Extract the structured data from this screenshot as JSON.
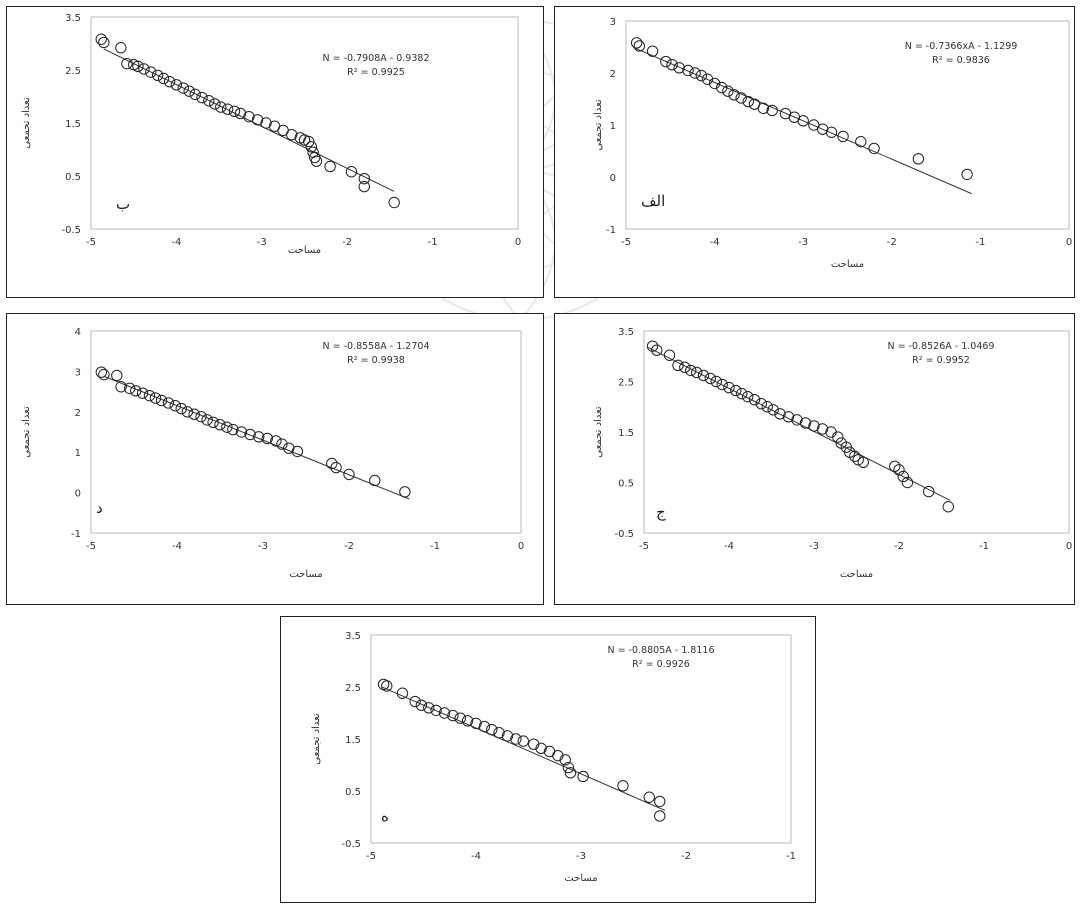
{
  "chart_data": [
    {
      "id": "b",
      "type": "scatter",
      "panel_label": "ب",
      "equation": "N = -0.7908A - 0.9382",
      "r2": "R² = 0.9925",
      "xlabel": "مساحت",
      "ylabel": "تعداد تجمعی",
      "xlim": [
        -5,
        0
      ],
      "ylim": [
        -0.5,
        3.5
      ],
      "xticks": [
        -5,
        -4,
        -3,
        -2,
        -1,
        0
      ],
      "yticks": [
        -0.5,
        0.5,
        1.5,
        2.5,
        3.5
      ],
      "trendline": {
        "slope": -0.7908,
        "intercept": -0.9382,
        "x": [
          -4.85,
          -1.45
        ]
      },
      "points": [
        [
          -4.88,
          3.08
        ],
        [
          -4.85,
          3.02
        ],
        [
          -4.65,
          2.92
        ],
        [
          -4.58,
          2.62
        ],
        [
          -4.5,
          2.6
        ],
        [
          -4.45,
          2.57
        ],
        [
          -4.38,
          2.52
        ],
        [
          -4.3,
          2.46
        ],
        [
          -4.22,
          2.4
        ],
        [
          -4.15,
          2.34
        ],
        [
          -4.08,
          2.28
        ],
        [
          -4.0,
          2.22
        ],
        [
          -3.92,
          2.16
        ],
        [
          -3.85,
          2.1
        ],
        [
          -3.78,
          2.04
        ],
        [
          -3.7,
          1.98
        ],
        [
          -3.62,
          1.92
        ],
        [
          -3.55,
          1.86
        ],
        [
          -3.48,
          1.8
        ],
        [
          -3.4,
          1.76
        ],
        [
          -3.32,
          1.72
        ],
        [
          -3.25,
          1.68
        ],
        [
          -3.15,
          1.62
        ],
        [
          -3.05,
          1.56
        ],
        [
          -2.95,
          1.5
        ],
        [
          -2.85,
          1.44
        ],
        [
          -2.75,
          1.36
        ],
        [
          -2.65,
          1.28
        ],
        [
          -2.55,
          1.22
        ],
        [
          -2.5,
          1.18
        ],
        [
          -2.45,
          1.15
        ],
        [
          -2.42,
          1.05
        ],
        [
          -2.4,
          0.95
        ],
        [
          -2.38,
          0.85
        ],
        [
          -2.36,
          0.78
        ],
        [
          -2.2,
          0.68
        ],
        [
          -1.95,
          0.58
        ],
        [
          -1.8,
          0.45
        ],
        [
          -1.8,
          0.3
        ],
        [
          -1.45,
          0.0
        ]
      ]
    },
    {
      "id": "alef",
      "type": "scatter",
      "panel_label": "الف",
      "equation": "N = -0.7366xA - 1.1299",
      "r2": "R² = 0.9836",
      "xlabel": "مساحت",
      "ylabel": "تعداد تجمعی",
      "xlim": [
        -5,
        0
      ],
      "ylim": [
        -1,
        3
      ],
      "xticks": [
        -5,
        -4,
        -3,
        -2,
        -1,
        0
      ],
      "yticks": [
        -1,
        0,
        1,
        2,
        3
      ],
      "trendline": {
        "slope": -0.7366,
        "intercept": -1.1299,
        "x": [
          -4.9,
          -1.1
        ]
      },
      "points": [
        [
          -4.88,
          2.58
        ],
        [
          -4.85,
          2.52
        ],
        [
          -4.7,
          2.42
        ],
        [
          -4.55,
          2.22
        ],
        [
          -4.48,
          2.16
        ],
        [
          -4.4,
          2.1
        ],
        [
          -4.3,
          2.05
        ],
        [
          -4.22,
          2.0
        ],
        [
          -4.15,
          1.95
        ],
        [
          -4.08,
          1.88
        ],
        [
          -4.0,
          1.8
        ],
        [
          -3.92,
          1.72
        ],
        [
          -3.85,
          1.65
        ],
        [
          -3.78,
          1.58
        ],
        [
          -3.7,
          1.52
        ],
        [
          -3.62,
          1.45
        ],
        [
          -3.55,
          1.4
        ],
        [
          -3.45,
          1.32
        ],
        [
          -3.35,
          1.28
        ],
        [
          -3.2,
          1.22
        ],
        [
          -3.1,
          1.15
        ],
        [
          -3.0,
          1.08
        ],
        [
          -2.88,
          1.0
        ],
        [
          -2.78,
          0.92
        ],
        [
          -2.68,
          0.86
        ],
        [
          -2.55,
          0.78
        ],
        [
          -2.35,
          0.68
        ],
        [
          -2.2,
          0.55
        ],
        [
          -1.7,
          0.35
        ],
        [
          -1.15,
          0.05
        ]
      ]
    },
    {
      "id": "d",
      "type": "scatter",
      "panel_label": "د",
      "equation": "N = -0.8558A - 1.2704",
      "r2": "R² = 0.9938",
      "xlabel": "مساحت",
      "ylabel": "تعداد تجمعی",
      "xlim": [
        -5,
        0
      ],
      "ylim": [
        -1,
        4
      ],
      "xticks": [
        -5,
        -4,
        -3,
        -2,
        -1,
        0
      ],
      "yticks": [
        -1,
        0,
        1,
        2,
        3,
        4
      ],
      "trendline": {
        "slope": -0.8558,
        "intercept": -1.2704,
        "x": [
          -4.85,
          -1.3
        ]
      },
      "points": [
        [
          -4.88,
          2.98
        ],
        [
          -4.85,
          2.92
        ],
        [
          -4.7,
          2.9
        ],
        [
          -4.65,
          2.62
        ],
        [
          -4.55,
          2.58
        ],
        [
          -4.48,
          2.52
        ],
        [
          -4.4,
          2.46
        ],
        [
          -4.32,
          2.4
        ],
        [
          -4.25,
          2.34
        ],
        [
          -4.18,
          2.28
        ],
        [
          -4.1,
          2.22
        ],
        [
          -4.02,
          2.15
        ],
        [
          -3.95,
          2.08
        ],
        [
          -3.88,
          2.0
        ],
        [
          -3.8,
          1.94
        ],
        [
          -3.72,
          1.88
        ],
        [
          -3.65,
          1.8
        ],
        [
          -3.58,
          1.74
        ],
        [
          -3.5,
          1.68
        ],
        [
          -3.42,
          1.62
        ],
        [
          -3.35,
          1.56
        ],
        [
          -3.25,
          1.5
        ],
        [
          -3.15,
          1.44
        ],
        [
          -3.05,
          1.38
        ],
        [
          -2.95,
          1.34
        ],
        [
          -2.85,
          1.28
        ],
        [
          -2.78,
          1.2
        ],
        [
          -2.7,
          1.1
        ],
        [
          -2.6,
          1.02
        ],
        [
          -2.2,
          0.72
        ],
        [
          -2.15,
          0.62
        ],
        [
          -2.0,
          0.45
        ],
        [
          -1.7,
          0.3
        ],
        [
          -1.35,
          0.02
        ]
      ]
    },
    {
      "id": "jim",
      "type": "scatter",
      "panel_label": "ج",
      "equation": "N = -0.8526A - 1.0469",
      "r2": "R² = 0.9952",
      "xlabel": "مساحت",
      "ylabel": "تعداد تجمعی",
      "xlim": [
        -5,
        0
      ],
      "ylim": [
        -0.5,
        3.5
      ],
      "xticks": [
        -5,
        -4,
        -3,
        -2,
        -1,
        0
      ],
      "yticks": [
        -0.5,
        0.5,
        1.5,
        2.5,
        3.5
      ],
      "trendline": {
        "slope": -0.8526,
        "intercept": -1.0469,
        "x": [
          -4.95,
          -1.4
        ]
      },
      "points": [
        [
          -4.9,
          3.2
        ],
        [
          -4.85,
          3.12
        ],
        [
          -4.7,
          3.02
        ],
        [
          -4.6,
          2.82
        ],
        [
          -4.52,
          2.78
        ],
        [
          -4.45,
          2.72
        ],
        [
          -4.38,
          2.68
        ],
        [
          -4.3,
          2.62
        ],
        [
          -4.22,
          2.56
        ],
        [
          -4.15,
          2.5
        ],
        [
          -4.08,
          2.44
        ],
        [
          -4.0,
          2.38
        ],
        [
          -3.92,
          2.32
        ],
        [
          -3.85,
          2.26
        ],
        [
          -3.78,
          2.2
        ],
        [
          -3.7,
          2.14
        ],
        [
          -3.62,
          2.06
        ],
        [
          -3.55,
          2.0
        ],
        [
          -3.48,
          1.94
        ],
        [
          -3.4,
          1.86
        ],
        [
          -3.3,
          1.8
        ],
        [
          -3.2,
          1.74
        ],
        [
          -3.1,
          1.68
        ],
        [
          -3.0,
          1.62
        ],
        [
          -2.9,
          1.56
        ],
        [
          -2.8,
          1.5
        ],
        [
          -2.72,
          1.4
        ],
        [
          -2.68,
          1.28
        ],
        [
          -2.62,
          1.2
        ],
        [
          -2.58,
          1.1
        ],
        [
          -2.52,
          1.02
        ],
        [
          -2.48,
          0.95
        ],
        [
          -2.42,
          0.9
        ],
        [
          -2.05,
          0.82
        ],
        [
          -2.0,
          0.75
        ],
        [
          -1.95,
          0.62
        ],
        [
          -1.9,
          0.5
        ],
        [
          -1.65,
          0.32
        ],
        [
          -1.42,
          0.02
        ]
      ]
    },
    {
      "id": "he",
      "type": "scatter",
      "panel_label": "ه",
      "equation": "N = -0.8805A - 1.8116",
      "r2": "R² = 0.9926",
      "xlabel": "مساحت",
      "ylabel": "تعداد تجمعی",
      "xlim": [
        -5,
        -1
      ],
      "ylim": [
        -0.5,
        3.5
      ],
      "xticks": [
        -5,
        -4,
        -3,
        -2,
        -1
      ],
      "yticks": [
        -0.5,
        0.5,
        1.5,
        2.5,
        3.5
      ],
      "trendline": {
        "slope": -0.8805,
        "intercept": -1.8116,
        "x": [
          -4.9,
          -2.2
        ]
      },
      "points": [
        [
          -4.88,
          2.55
        ],
        [
          -4.85,
          2.52
        ],
        [
          -4.7,
          2.38
        ],
        [
          -4.58,
          2.22
        ],
        [
          -4.52,
          2.15
        ],
        [
          -4.45,
          2.1
        ],
        [
          -4.38,
          2.05
        ],
        [
          -4.3,
          2.0
        ],
        [
          -4.22,
          1.95
        ],
        [
          -4.15,
          1.9
        ],
        [
          -4.08,
          1.85
        ],
        [
          -4.0,
          1.8
        ],
        [
          -3.92,
          1.74
        ],
        [
          -3.85,
          1.68
        ],
        [
          -3.78,
          1.62
        ],
        [
          -3.7,
          1.56
        ],
        [
          -3.62,
          1.5
        ],
        [
          -3.55,
          1.46
        ],
        [
          -3.45,
          1.4
        ],
        [
          -3.38,
          1.32
        ],
        [
          -3.3,
          1.26
        ],
        [
          -3.22,
          1.18
        ],
        [
          -3.15,
          1.1
        ],
        [
          -3.12,
          0.95
        ],
        [
          -3.1,
          0.85
        ],
        [
          -2.98,
          0.78
        ],
        [
          -2.6,
          0.6
        ],
        [
          -2.35,
          0.38
        ],
        [
          -2.25,
          0.3
        ],
        [
          -2.25,
          0.02
        ]
      ]
    }
  ]
}
